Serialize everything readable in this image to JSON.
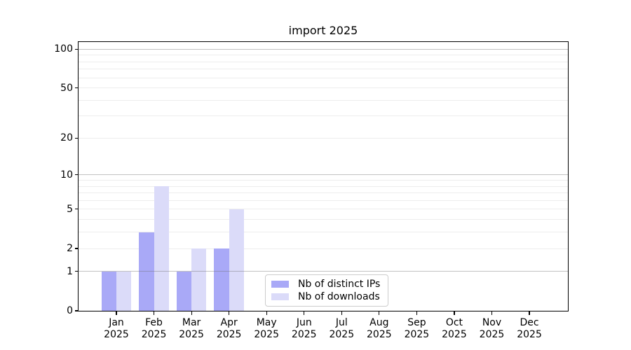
{
  "chart_data": {
    "type": "bar",
    "title": "import 2025",
    "categories": [
      "Jan",
      "Feb",
      "Mar",
      "Apr",
      "May",
      "Jun",
      "Jul",
      "Aug",
      "Sep",
      "Oct",
      "Nov",
      "Dec"
    ],
    "x_year": "2025",
    "series": [
      {
        "name": "Nb of distinct IPs",
        "color": "#a9a9f7",
        "values": [
          1,
          3,
          1,
          2,
          0,
          0,
          0,
          0,
          0,
          0,
          0,
          0
        ]
      },
      {
        "name": "Nb of downloads",
        "color": "#dbdbf9",
        "values": [
          1,
          8,
          2,
          5,
          0,
          0,
          0,
          0,
          0,
          0,
          0,
          0
        ]
      }
    ],
    "y_axis": {
      "scale": "log1p",
      "ylim": [
        0,
        114
      ],
      "ticks": [
        {
          "value": 0,
          "label": "0"
        },
        {
          "value": 1,
          "label": "1"
        },
        {
          "value": 2,
          "label": "2"
        },
        {
          "value": 5,
          "label": "5"
        },
        {
          "value": 10,
          "label": "10"
        },
        {
          "value": 20,
          "label": "20"
        },
        {
          "value": 50,
          "label": "50"
        },
        {
          "value": 100,
          "label": "100"
        }
      ],
      "major_gridlines": [
        1,
        10,
        100
      ],
      "minor_gridlines": [
        2,
        3,
        4,
        5,
        6,
        7,
        8,
        9,
        20,
        30,
        40,
        50,
        60,
        70,
        80,
        90
      ]
    },
    "legend_position": "lower center",
    "grid": "on"
  }
}
